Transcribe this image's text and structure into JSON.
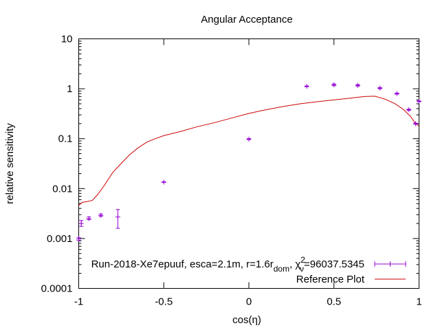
{
  "chart_data": {
    "type": "scatter",
    "title": "Angular Acceptance",
    "xlabel": "cos(η)",
    "ylabel": "relative sensitivity",
    "xlim": [
      -1,
      1
    ],
    "ylim": [
      0.0001,
      10
    ],
    "yscale": "log",
    "grid": false,
    "legend_position": "bottom-right",
    "x_ticks": [
      {
        "value": -1,
        "label": "-1"
      },
      {
        "value": -0.5,
        "label": "-0.5"
      },
      {
        "value": 0,
        "label": "0"
      },
      {
        "value": 0.5,
        "label": "0.5"
      },
      {
        "value": 1,
        "label": "1"
      }
    ],
    "y_ticks": [
      {
        "value": 0.0001,
        "label": "0.0001"
      },
      {
        "value": 0.001,
        "label": "0.001"
      },
      {
        "value": 0.01,
        "label": "0.01"
      },
      {
        "value": 0.1,
        "label": "0.1"
      },
      {
        "value": 1,
        "label": "1"
      },
      {
        "value": 10,
        "label": "10"
      }
    ],
    "series": [
      {
        "name": "Run-2018-Xe7epuuf, esca=2.1m, r=1.6r",
        "name_subscript": "dom",
        "name_chi": ", χ",
        "name_chi_sup": "2",
        "name_chi_sub": "ν",
        "name_tail": "=96037.5345",
        "type": "points_errorbars",
        "color": "#9400d3",
        "points": [
          {
            "x": -1.0,
            "y": 0.00098,
            "ylo": 0.00092,
            "yhi": 0.00105
          },
          {
            "x": -0.985,
            "y": 0.002,
            "ylo": 0.00175,
            "yhi": 0.0023
          },
          {
            "x": -0.94,
            "y": 0.0025,
            "ylo": 0.0024,
            "yhi": 0.0027
          },
          {
            "x": -0.87,
            "y": 0.0029,
            "ylo": 0.0028,
            "yhi": 0.0031
          },
          {
            "x": -0.77,
            "y": 0.0027,
            "ylo": 0.0016,
            "yhi": 0.0038
          },
          {
            "x": -0.5,
            "y": 0.0135,
            "ylo": 0.0133,
            "yhi": 0.0137
          },
          {
            "x": 0.0,
            "y": 0.098,
            "ylo": 0.096,
            "yhi": 0.1
          },
          {
            "x": 0.34,
            "y": 1.12,
            "ylo": 1.1,
            "yhi": 1.14
          },
          {
            "x": 0.5,
            "y": 1.2,
            "ylo": 1.15,
            "yhi": 1.25
          },
          {
            "x": 0.64,
            "y": 1.17,
            "ylo": 1.13,
            "yhi": 1.21
          },
          {
            "x": 0.77,
            "y": 1.03,
            "ylo": 1.0,
            "yhi": 1.06
          },
          {
            "x": 0.87,
            "y": 0.8,
            "ylo": 0.78,
            "yhi": 0.82
          },
          {
            "x": 0.94,
            "y": 0.38,
            "ylo": 0.37,
            "yhi": 0.39
          },
          {
            "x": 0.98,
            "y": 0.2,
            "ylo": 0.195,
            "yhi": 0.205
          },
          {
            "x": 1.0,
            "y": 0.56,
            "ylo": 0.55,
            "yhi": 0.57
          }
        ]
      },
      {
        "name": "Reference Plot",
        "type": "line",
        "color": "#cc0000",
        "points": [
          {
            "x": -1.0,
            "y": 0.0046
          },
          {
            "x": -0.98,
            "y": 0.0053
          },
          {
            "x": -0.95,
            "y": 0.0055
          },
          {
            "x": -0.92,
            "y": 0.0058
          },
          {
            "x": -0.89,
            "y": 0.0075
          },
          {
            "x": -0.85,
            "y": 0.0115
          },
          {
            "x": -0.8,
            "y": 0.021
          },
          {
            "x": -0.75,
            "y": 0.032
          },
          {
            "x": -0.7,
            "y": 0.048
          },
          {
            "x": -0.65,
            "y": 0.066
          },
          {
            "x": -0.6,
            "y": 0.085
          },
          {
            "x": -0.55,
            "y": 0.1
          },
          {
            "x": -0.5,
            "y": 0.115
          },
          {
            "x": -0.4,
            "y": 0.14
          },
          {
            "x": -0.3,
            "y": 0.175
          },
          {
            "x": -0.2,
            "y": 0.21
          },
          {
            "x": -0.1,
            "y": 0.26
          },
          {
            "x": 0.0,
            "y": 0.32
          },
          {
            "x": 0.1,
            "y": 0.38
          },
          {
            "x": 0.2,
            "y": 0.44
          },
          {
            "x": 0.3,
            "y": 0.5
          },
          {
            "x": 0.4,
            "y": 0.55
          },
          {
            "x": 0.5,
            "y": 0.6
          },
          {
            "x": 0.6,
            "y": 0.65
          },
          {
            "x": 0.68,
            "y": 0.7
          },
          {
            "x": 0.74,
            "y": 0.71
          },
          {
            "x": 0.8,
            "y": 0.62
          },
          {
            "x": 0.86,
            "y": 0.5
          },
          {
            "x": 0.91,
            "y": 0.38
          },
          {
            "x": 0.95,
            "y": 0.28
          },
          {
            "x": 0.98,
            "y": 0.2
          },
          {
            "x": 1.0,
            "y": 0.18
          }
        ]
      }
    ]
  }
}
